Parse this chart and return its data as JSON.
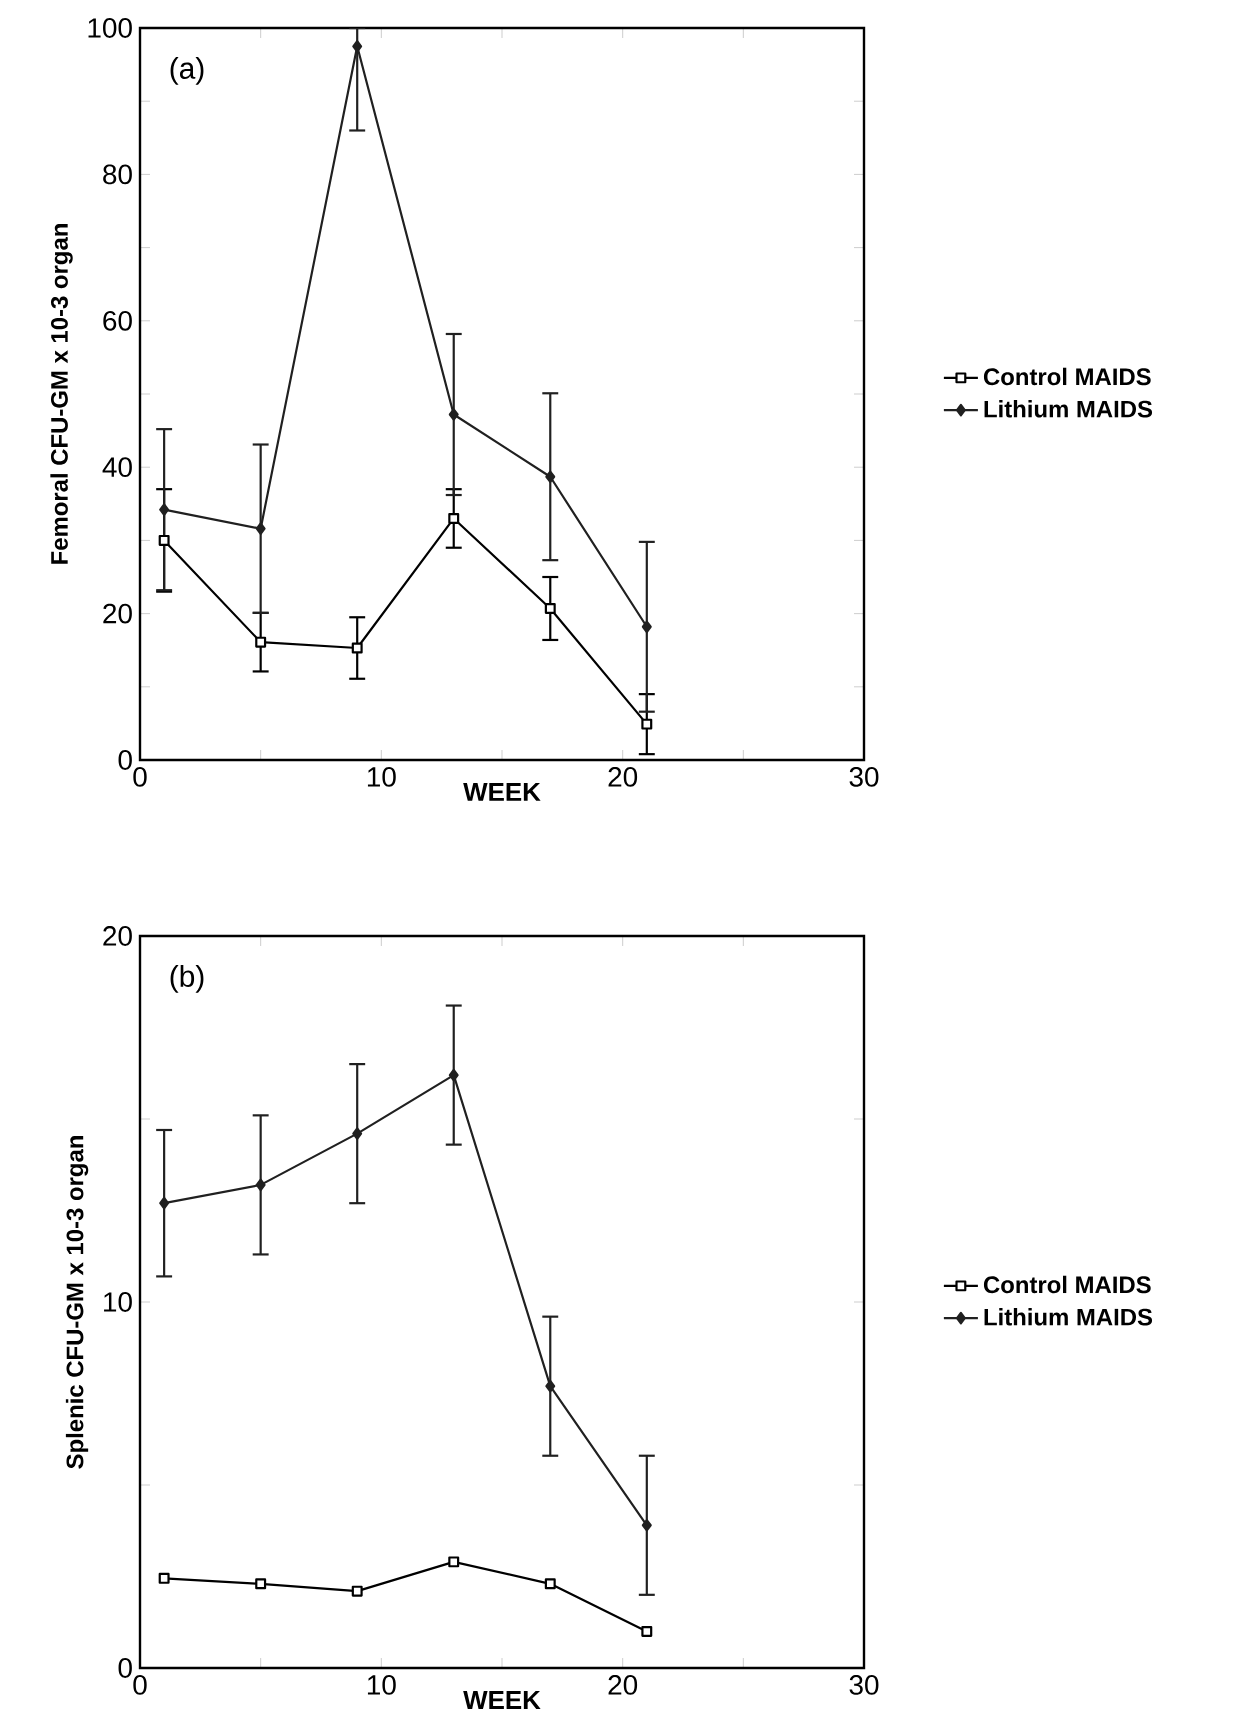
{
  "chart_data": [
    {
      "type": "line",
      "xlabel": "WEEK",
      "ylabel": "Femoral CFU-GM x 10-3 organ",
      "annotations": [
        "(a)"
      ],
      "x": [
        1,
        5,
        9,
        13,
        17,
        21
      ],
      "series": [
        {
          "name": "Control  MAIDS",
          "color": "#000000",
          "marker": "square",
          "values": [
            30,
            16.1,
            15.3,
            33,
            20.7,
            4.9
          ],
          "errors": [
            7,
            4,
            4.2,
            4,
            4.3,
            4.1
          ]
        },
        {
          "name": "Lithium  MAIDS",
          "color": "#202020",
          "marker": "diamond",
          "values": [
            34.2,
            31.6,
            97.5,
            47.2,
            38.7,
            18.2
          ],
          "errors": [
            11,
            11.5,
            [
              86,
              100
            ],
            11,
            11.4,
            11.6
          ]
        }
      ],
      "xlim": [
        0,
        30
      ],
      "xticks": [
        0,
        {
          "value": 5,
          "label": null
        },
        10,
        {
          "value": 15,
          "label": null
        },
        20,
        {
          "value": 25,
          "label": null
        },
        30
      ],
      "ylim": [
        0,
        100
      ],
      "yticks": [
        0,
        {
          "value": 10,
          "label": null
        },
        20,
        {
          "value": 30,
          "label": null
        },
        40,
        {
          "value": 50,
          "label": null
        },
        60,
        {
          "value": 70,
          "label": null
        },
        80,
        {
          "value": 90,
          "label": null
        },
        100
      ],
      "legend": "right",
      "grid": false,
      "line_style": "solid"
    },
    {
      "type": "line",
      "xlabel": "WEEK",
      "ylabel": "Splenic CFU-GM x 10-3 organ",
      "annotations": [
        "(b)"
      ],
      "x": [
        1,
        5,
        9,
        13,
        17,
        21
      ],
      "series": [
        {
          "name": "Control  MAIDS",
          "color": "#000000",
          "marker": "square",
          "values": [
            2.45,
            2.3,
            2.1,
            2.9,
            2.3,
            1.0
          ]
        },
        {
          "name": "Lithium  MAIDS",
          "color": "#202020",
          "marker": "diamond",
          "values": [
            12.7,
            13.2,
            14.6,
            16.2,
            7.7,
            3.9
          ],
          "errors": [
            2,
            1.9,
            1.9,
            1.9,
            1.9,
            1.9
          ]
        }
      ],
      "xlim": [
        0,
        30
      ],
      "xticks": [
        0,
        {
          "value": 5,
          "label": null
        },
        10,
        {
          "value": 15,
          "label": null
        },
        20,
        {
          "value": 25,
          "label": null
        },
        30
      ],
      "ylim": [
        0,
        20
      ],
      "yticks": [
        0,
        {
          "value": 5,
          "label": null
        },
        10,
        {
          "value": 15,
          "label": null
        },
        20
      ],
      "legend": "right",
      "grid": false,
      "line_style": "solid"
    }
  ]
}
